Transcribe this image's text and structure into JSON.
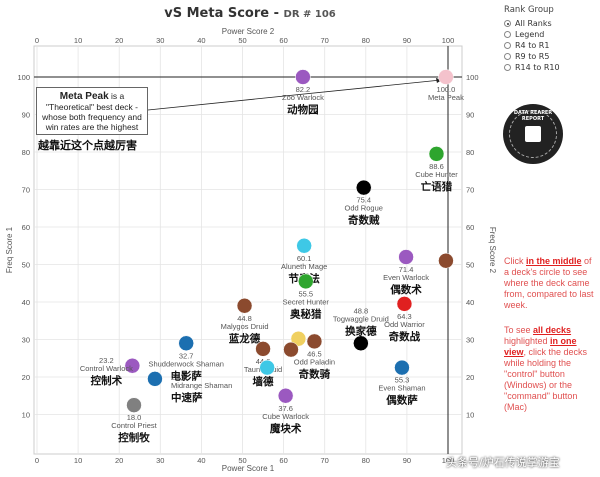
{
  "header": {
    "title": "vS Meta Score - ",
    "subtitle": "DR # 106"
  },
  "rank_group": {
    "label": "Rank Group",
    "options": [
      "All Ranks",
      "Legend",
      "R4 to R1",
      "R9 to R5",
      "R14 to R10"
    ],
    "selected": "All Ranks"
  },
  "logo_text": "DATA REAPER REPORT",
  "meta_peak_note": {
    "title": "Meta Peak",
    "body1": " is a",
    "body2": "\"Theoretical\" best deck -",
    "body3": "whose both frequency and",
    "body4": "win rates are the highest",
    "caption_cn": "越靠近这个点越厉害"
  },
  "instructions": {
    "p1_a": "Click ",
    "p1_b": "in the middle",
    "p1_c": " of a deck's circle to see where the deck came from, compared to last week.",
    "p2_a": "To see ",
    "p2_b": "all decks",
    "p2_c": " highlighted ",
    "p2_d": "in one view",
    "p2_e": ", click the decks while holding the \"control\" button (Windows) or the \"command\" button (Mac)"
  },
  "watermark": "头条号/炉石传说掌游宝",
  "chart_data": {
    "type": "scatter",
    "title": "vS Meta Score - DR # 106",
    "xlabel": "Power Score 1",
    "ylabel": "Freq Score 1",
    "x2label": "Power Score 2",
    "y2label": "Freq Score 2",
    "xlim": [
      0,
      100
    ],
    "ylim": [
      0,
      100
    ],
    "xticks": [
      0,
      10,
      20,
      30,
      40,
      50,
      60,
      70,
      80,
      90,
      100
    ],
    "yticks": [
      10,
      20,
      30,
      40,
      50,
      60,
      70,
      80,
      90,
      100
    ],
    "grid": true,
    "points": [
      {
        "name": "Zoo Warlock",
        "value": "82.2",
        "cn": "动物园",
        "x": 64.7,
        "y": 100,
        "color": "#9b59c0",
        "label_pos": "below"
      },
      {
        "name": "Meta Peak",
        "value": "100.0",
        "cn": "",
        "x": 99.5,
        "y": 100,
        "color": "#f4c2cc",
        "label_pos": "below"
      },
      {
        "name": "Cube Hunter",
        "value": "88.6",
        "cn": "亡语猎",
        "x": 97.2,
        "y": 79.5,
        "color": "#2ea52e",
        "label_pos": "below"
      },
      {
        "name": "Odd Rogue",
        "value": "75.4",
        "cn": "奇数贼",
        "x": 79.5,
        "y": 70.5,
        "color": "#000000",
        "label_pos": "below"
      },
      {
        "name": "Aluneth Mage",
        "value": "60.1",
        "cn": "节奏法",
        "x": 65.0,
        "y": 55.0,
        "color": "#3ec8e6",
        "label_pos": "below"
      },
      {
        "name": "Secret Hunter",
        "value": "55.5",
        "cn": "奥秘猎",
        "x": 65.4,
        "y": 45.5,
        "color": "#2ea52e",
        "label_pos": "below"
      },
      {
        "name": "Even Warlock",
        "value": "71.4",
        "cn": "偶数术",
        "x": 89.8,
        "y": 52.0,
        "color": "#9b59c0",
        "label_pos": "below"
      },
      {
        "name": "Odd Warrior",
        "value": "64.3",
        "cn": "奇数战",
        "x": 89.4,
        "y": 39.5,
        "color": "#e02020",
        "label_pos": "below"
      },
      {
        "name": "Malygos Druid",
        "value": "44.8",
        "cn": "蓝龙德",
        "x": 50.5,
        "y": 39.0,
        "color": "#8b4a2e",
        "label_pos": "below"
      },
      {
        "name": "Shudderwock Shaman",
        "value": "32.7",
        "cn": "电影萨",
        "x": 36.3,
        "y": 29.0,
        "color": "#1c6fb0",
        "label_pos": "below"
      },
      {
        "name": "Taunt Druid",
        "value": "44.6",
        "cn": "墙德",
        "x": 55.0,
        "y": 27.5,
        "color": "#8b4a2e",
        "label_pos": "below"
      },
      {
        "name": "Odd Paladin",
        "value": "46.5",
        "cn": "奇数骑",
        "x": 67.5,
        "y": 29.5,
        "color": "#8b4a2e",
        "label_pos": "below"
      },
      {
        "name": "Togwaggle Druid",
        "value": "48.8",
        "cn": "换家德",
        "x": 78.8,
        "y": 29.0,
        "color": "#000000",
        "label_pos": "above"
      },
      {
        "name": "Control Warlock",
        "value": "23.2",
        "cn": "控制术",
        "x": 23.2,
        "y": 23.0,
        "color": "#9b59c0",
        "label_pos": "left"
      },
      {
        "name": "Midrange Shaman",
        "value": "24.1",
        "cn": "中速萨",
        "x": 28.7,
        "y": 19.5,
        "color": "#1c6fb0",
        "label_pos": "right"
      },
      {
        "name": "Control Priest",
        "value": "18.0",
        "cn": "控制牧",
        "x": 23.6,
        "y": 12.5,
        "color": "#808080",
        "label_pos": "below"
      },
      {
        "name": "Cube Warlock",
        "value": "37.6",
        "cn": "魔块术",
        "x": 60.5,
        "y": 15.0,
        "color": "#9b59c0",
        "label_pos": "below"
      },
      {
        "name": "Even Shaman",
        "value": "55.3",
        "cn": "偶数萨",
        "x": 88.8,
        "y": 22.5,
        "color": "#1c6fb0",
        "label_pos": "below"
      },
      {
        "name": "",
        "value": "",
        "cn": "",
        "x": 99.5,
        "y": 51.0,
        "color": "#8b4a2e",
        "label_pos": "none"
      },
      {
        "name": "",
        "value": "",
        "cn": "",
        "x": 56.0,
        "y": 22.5,
        "color": "#3ec8e6",
        "label_pos": "none"
      },
      {
        "name": "",
        "value": "",
        "cn": "",
        "x": 63.6,
        "y": 30.2,
        "color": "#f0d060",
        "label_pos": "none"
      },
      {
        "name": "",
        "value": "",
        "cn": "",
        "x": 61.8,
        "y": 27.3,
        "color": "#8b4a2e",
        "label_pos": "none"
      }
    ]
  }
}
